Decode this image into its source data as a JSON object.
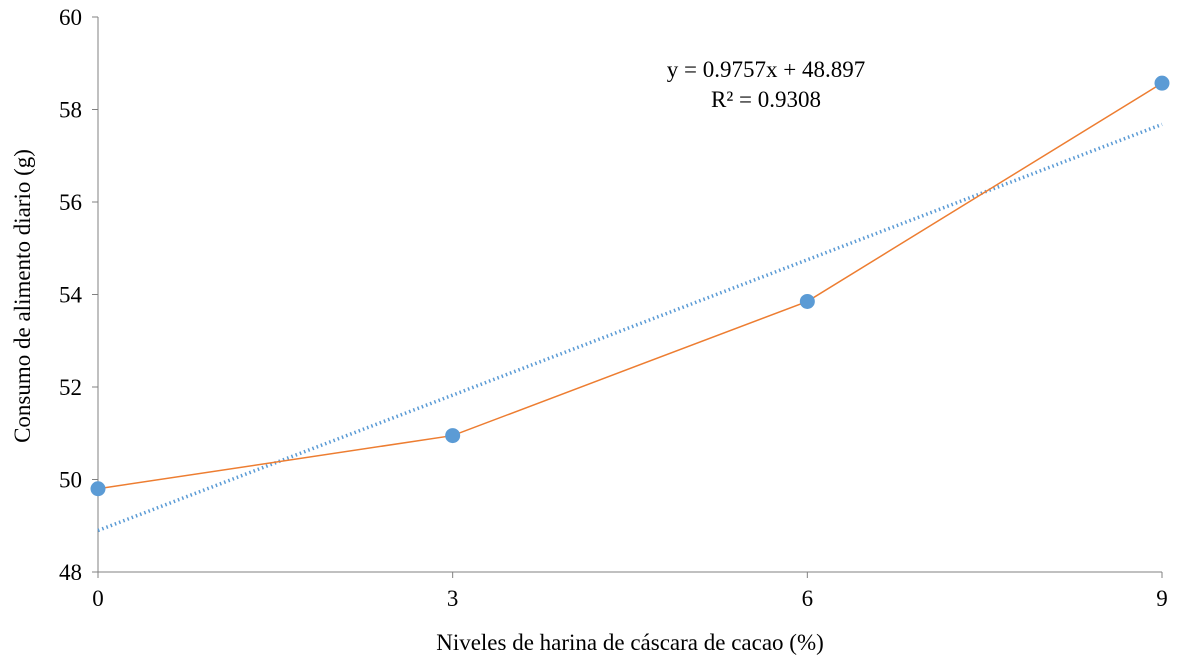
{
  "chart_data": {
    "type": "scatter",
    "xlabel": "Niveles de harina de cáscara de cacao (%)",
    "ylabel": "Consumo de alimento diario (g)",
    "x": [
      0,
      3,
      6,
      9
    ],
    "xticks": [
      "0",
      "3",
      "6",
      "9"
    ],
    "xlim": [
      0,
      9
    ],
    "ylim": [
      48,
      60
    ],
    "yticks": [
      "48",
      "50",
      "52",
      "54",
      "56",
      "58",
      "60"
    ],
    "grid": false,
    "series": [
      {
        "values": [
          49.8,
          50.95,
          53.85,
          58.57
        ],
        "marker_color": "#5b9bd5",
        "line_color": "#ed7d31"
      }
    ],
    "trendline": {
      "type": "linear",
      "slope": 0.9757,
      "intercept": 48.897,
      "color": "#5b9bd5",
      "style": "dotted"
    },
    "annotations": {
      "equation": "y = 0.9757x + 48.897",
      "r2": "R² = 0.9308"
    }
  }
}
